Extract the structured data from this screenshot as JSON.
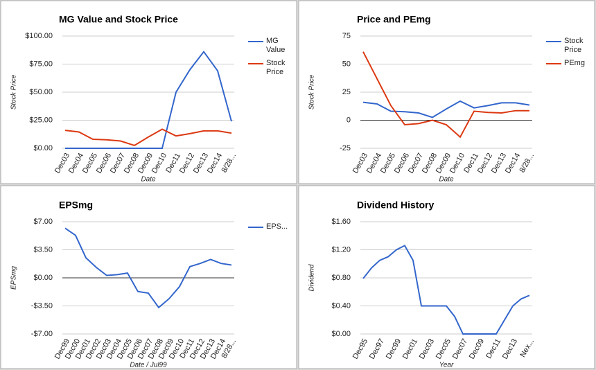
{
  "chart_data": [
    {
      "type": "line",
      "title": "MG Value and Stock Price",
      "x_label": "Date",
      "y_label": "Stock Price",
      "categories": [
        "Dec03",
        "Dec04",
        "Dec05",
        "Dec06",
        "Dec07",
        "Dec08",
        "Dec09",
        "Dec10",
        "Dec11",
        "Dec12",
        "Dec13",
        "Dec14",
        "8/28..."
      ],
      "series": [
        {
          "name": "MG Value",
          "color": "#3366cc",
          "values": [
            0,
            0,
            0,
            0,
            0,
            0,
            0,
            0,
            50,
            70,
            86,
            69,
            24
          ]
        },
        {
          "name": "Stock Price",
          "color": "#dc3912",
          "values": [
            16,
            14.5,
            8,
            7.5,
            6.5,
            2.5,
            10,
            17,
            11,
            13,
            15.5,
            15.5,
            13.5
          ]
        }
      ],
      "ylim": [
        0,
        100
      ],
      "yticks": [
        {
          "value": 0,
          "label": "$0.00"
        },
        {
          "value": 25,
          "label": "$25.00"
        },
        {
          "value": 50,
          "label": "$50.00"
        },
        {
          "value": 75,
          "label": "$75.00"
        },
        {
          "value": 100,
          "label": "$100.00"
        }
      ],
      "grid": true,
      "legend": "right"
    },
    {
      "type": "line",
      "title": "Price and PEmg",
      "x_label": "Date",
      "y_label": "Stock Price",
      "categories": [
        "Dec03",
        "Dec04",
        "Dec05",
        "Dec06",
        "Dec07",
        "Dec08",
        "Dec09",
        "Dec10",
        "Dec11",
        "Dec12",
        "Dec13",
        "Dec14",
        "8/28..."
      ],
      "series": [
        {
          "name": "Stock Price",
          "color": "#3366cc",
          "values": [
            16,
            14.5,
            8,
            7.5,
            6.5,
            2.5,
            10,
            17,
            11,
            13,
            15.5,
            15.5,
            13.5
          ]
        },
        {
          "name": "PEmg",
          "color": "#dc3912",
          "values": [
            61,
            37,
            13,
            -4,
            -3,
            0,
            -4,
            -15,
            8,
            7,
            6.5,
            8.5,
            8.5
          ]
        }
      ],
      "ylim": [
        -25,
        75
      ],
      "yticks": [
        -25,
        0,
        25,
        50,
        75
      ],
      "grid": true,
      "legend": "right"
    },
    {
      "type": "line",
      "title": "EPSmg",
      "x_label": "Date / Jul99",
      "y_label": "EPSmg",
      "categories": [
        "Dec99",
        "Dec00",
        "Dec01",
        "Dec02",
        "Dec03",
        "Dec04",
        "Dec05",
        "Dec06",
        "Dec07",
        "Dec08",
        "Dec09",
        "Dec10",
        "Dec11",
        "Dec12",
        "Dec13",
        "Dec14",
        "8/28..."
      ],
      "series": [
        {
          "name": "EPS...",
          "color": "#3366cc",
          "values": [
            6.2,
            5.3,
            2.5,
            1.3,
            0.3,
            0.4,
            0.6,
            -1.7,
            -1.9,
            -3.7,
            -2.6,
            -1.1,
            1.4,
            1.8,
            2.3,
            1.8,
            1.6
          ]
        }
      ],
      "ylim": [
        -7,
        7
      ],
      "yticks": [
        {
          "value": -7,
          "label": "-$7.00"
        },
        {
          "value": -3.5,
          "label": "-$3.50"
        },
        {
          "value": 0,
          "label": "$0.00"
        },
        {
          "value": 3.5,
          "label": "$3.50"
        },
        {
          "value": 7,
          "label": "$7.00"
        }
      ],
      "grid": true,
      "legend": "right"
    },
    {
      "type": "line",
      "title": "Dividend History",
      "x_label": "Year",
      "y_label": "Dividend",
      "categories": [
        "Dec95",
        null,
        "Dec97",
        null,
        "Dec99",
        null,
        "Dec01",
        null,
        "Dec03",
        null,
        "Dec05",
        null,
        "Dec07",
        null,
        "Dec09",
        null,
        "Dec11",
        null,
        "Dec13",
        null,
        "Nex..."
      ],
      "series": [
        {
          "color": "#3366cc",
          "values": [
            0.79,
            0.94,
            1.05,
            1.1,
            1.2,
            1.26,
            1.05,
            0.4,
            0.4,
            0.4,
            0.4,
            0.25,
            0,
            0,
            0,
            0,
            0,
            0.2,
            0.4,
            0.5,
            0.55
          ]
        }
      ],
      "ylim": [
        0,
        1.6
      ],
      "yticks": [
        {
          "value": 0,
          "label": "$0.00"
        },
        {
          "value": 0.4,
          "label": "$0.40"
        },
        {
          "value": 0.8,
          "label": "$0.80"
        },
        {
          "value": 1.2,
          "label": "$1.20"
        },
        {
          "value": 1.6,
          "label": "$1.60"
        }
      ],
      "grid": true
    }
  ]
}
